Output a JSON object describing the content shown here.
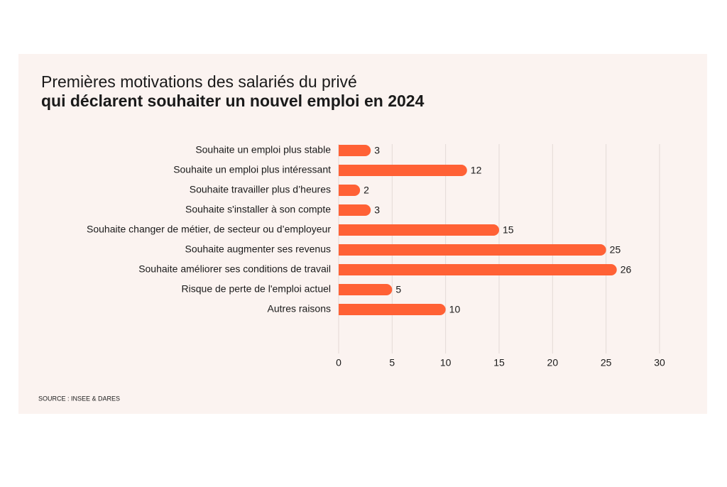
{
  "chart_data": {
    "type": "barh",
    "title_lines": [
      "Premières motivations des salariés du privé",
      "qui déclarent souhaiter un nouvel emploi en 2024"
    ],
    "categories": [
      "Souhaite un emploi plus stable",
      "Souhaite un emploi plus intéressant",
      "Souhaite travailler plus d’heures",
      "Souhaite s'installer à son compte",
      "Souhaite changer de métier, de secteur ou d’employeur",
      "Souhaite augmenter ses revenus",
      "Souhaite améliorer ses conditions de travail",
      "Risque de perte de l'emploi actuel",
      "Autres raisons"
    ],
    "values": [
      3,
      12,
      2,
      3,
      15,
      25,
      26,
      5,
      10
    ],
    "color": "#ff6135",
    "xlim": [
      0,
      30
    ],
    "xticks": [
      0,
      5,
      10,
      15,
      20,
      25,
      30
    ],
    "grid": true,
    "source": "SOURCE : INSEE & DARES"
  }
}
